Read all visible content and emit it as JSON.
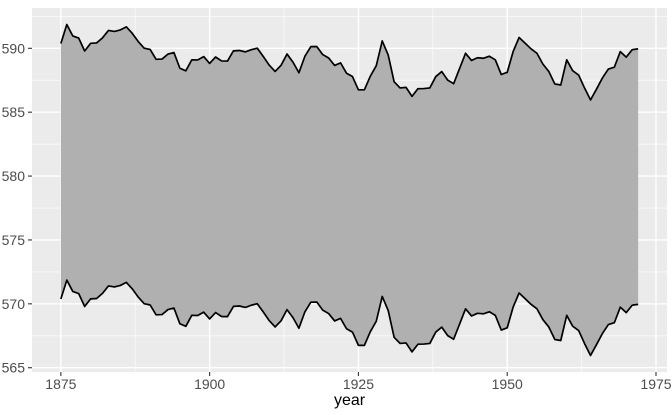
{
  "chart_data": {
    "type": "area",
    "subtype": "ribbon",
    "title": "",
    "xlabel": "year",
    "ylabel": "",
    "x": [
      1875,
      1876,
      1877,
      1878,
      1879,
      1880,
      1881,
      1882,
      1883,
      1884,
      1885,
      1886,
      1887,
      1888,
      1889,
      1890,
      1891,
      1892,
      1893,
      1894,
      1895,
      1896,
      1897,
      1898,
      1899,
      1900,
      1901,
      1902,
      1903,
      1904,
      1905,
      1906,
      1907,
      1908,
      1909,
      1910,
      1911,
      1912,
      1913,
      1914,
      1915,
      1916,
      1917,
      1918,
      1919,
      1920,
      1921,
      1922,
      1923,
      1924,
      1925,
      1926,
      1927,
      1928,
      1929,
      1930,
      1931,
      1932,
      1933,
      1934,
      1935,
      1936,
      1937,
      1938,
      1939,
      1940,
      1941,
      1942,
      1943,
      1944,
      1945,
      1946,
      1947,
      1948,
      1949,
      1950,
      1951,
      1952,
      1953,
      1954,
      1955,
      1956,
      1957,
      1958,
      1959,
      1960,
      1961,
      1962,
      1963,
      1964,
      1965,
      1966,
      1967,
      1968,
      1969,
      1970,
      1971,
      1972
    ],
    "series": [
      {
        "name": "upper bound (ymax)",
        "values": [
          590.38,
          591.86,
          590.97,
          590.8,
          589.79,
          590.39,
          590.42,
          590.82,
          591.4,
          591.32,
          591.44,
          591.68,
          591.17,
          590.53,
          590.01,
          589.91,
          589.14,
          589.16,
          589.55,
          589.67,
          588.44,
          588.24,
          589.1,
          589.09,
          589.35,
          588.82,
          589.32,
          589.01,
          589.0,
          589.8,
          589.83,
          589.72,
          589.89,
          590.01,
          589.37,
          588.69,
          588.19,
          588.67,
          589.55,
          588.92,
          588.09,
          589.37,
          590.13,
          590.14,
          589.51,
          589.24,
          588.66,
          588.86,
          588.05,
          587.79,
          586.75,
          586.75,
          587.82,
          588.64,
          590.58,
          589.48,
          587.38,
          586.9,
          586.94,
          586.24,
          586.84,
          586.85,
          586.9,
          587.79,
          588.18,
          587.51,
          587.23,
          588.42,
          589.61,
          589.05,
          589.26,
          589.22,
          589.38,
          589.1,
          587.95,
          588.12,
          589.75,
          590.85,
          590.41,
          589.96,
          589.61,
          588.76,
          588.18,
          587.21,
          587.13,
          589.1,
          588.25,
          587.91,
          586.89,
          585.96,
          586.8,
          587.68,
          588.38,
          588.52,
          589.74,
          589.31,
          589.89,
          589.96
        ]
      },
      {
        "name": "lower bound (ymin)",
        "values": [
          570.38,
          571.86,
          570.97,
          570.8,
          569.79,
          570.39,
          570.42,
          570.82,
          571.4,
          571.32,
          571.44,
          571.68,
          571.17,
          570.53,
          570.01,
          569.91,
          569.14,
          569.16,
          569.55,
          569.67,
          568.44,
          568.24,
          569.1,
          569.09,
          569.35,
          568.82,
          569.32,
          569.01,
          569.0,
          569.8,
          569.83,
          569.72,
          569.89,
          570.01,
          569.37,
          568.69,
          568.19,
          568.67,
          569.55,
          568.92,
          568.09,
          569.37,
          570.13,
          570.14,
          569.51,
          569.24,
          568.66,
          568.86,
          568.05,
          567.79,
          566.75,
          566.75,
          567.82,
          568.64,
          570.58,
          569.48,
          567.38,
          566.9,
          566.94,
          566.24,
          566.84,
          566.85,
          566.9,
          567.79,
          568.18,
          567.51,
          567.23,
          568.42,
          569.61,
          569.05,
          569.26,
          569.22,
          569.38,
          569.1,
          567.95,
          568.12,
          569.75,
          570.85,
          570.41,
          569.96,
          569.61,
          568.76,
          568.18,
          567.21,
          567.13,
          569.1,
          568.25,
          567.91,
          566.89,
          565.96,
          566.8,
          567.68,
          568.38,
          568.52,
          569.74,
          569.31,
          569.89,
          569.96
        ]
      }
    ],
    "x_ticks": [
      1875,
      1900,
      1925,
      1950,
      1975
    ],
    "y_ticks": [
      565,
      570,
      575,
      580,
      585,
      590
    ],
    "xlim": [
      1870.15,
      1976.85
    ],
    "ylim": [
      564.67,
      593.16
    ],
    "grid": "major-and-minor",
    "legend": "none",
    "style": {
      "figure_bg": "#FFFFFF",
      "panel_bg": "#EBEBEB",
      "grid": "#FFFFFF",
      "ribbon_fill": "#B0B0B0",
      "line": "#000000",
      "tick_mark": "#333333",
      "tick_text": "#4D4D4D",
      "title_text": "#000000"
    }
  }
}
